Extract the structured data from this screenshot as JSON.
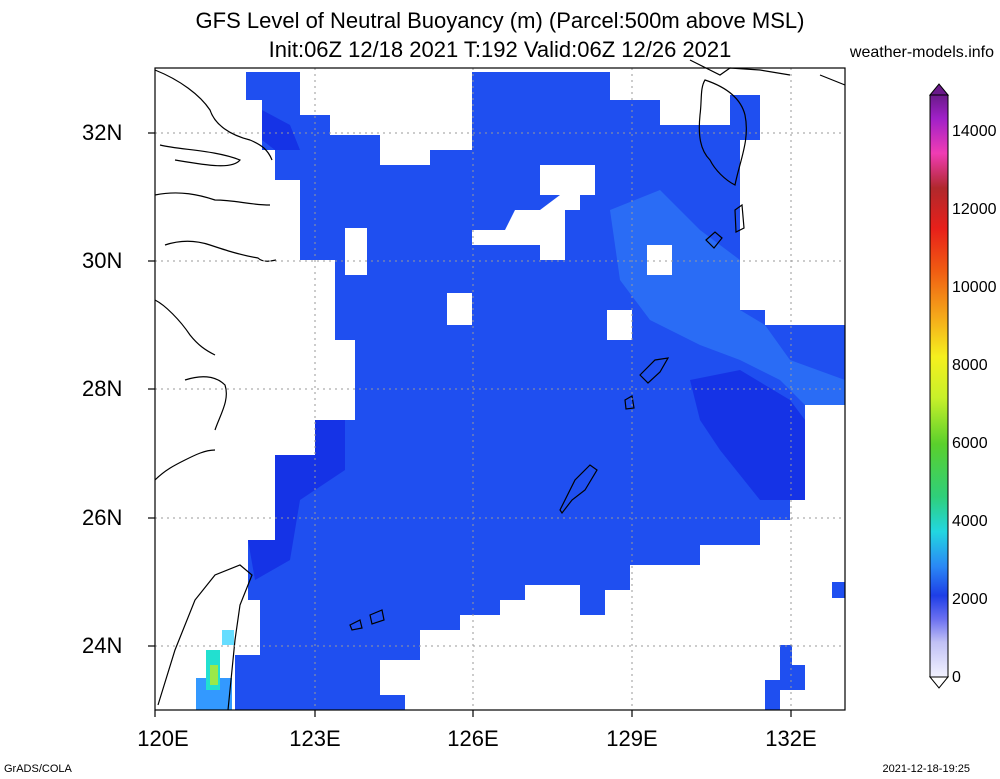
{
  "title": {
    "line1": "GFS Level of Neutral Buoyancy (m) (Parcel:500m above MSL)",
    "line2": "Init:06Z 12/18 2021 T:192 Valid:06Z 12/26 2021"
  },
  "site": "weather-models.info",
  "x_ticks": [
    "120E",
    "123E",
    "126E",
    "129E",
    "132E"
  ],
  "y_ticks": [
    "32N",
    "30N",
    "28N",
    "26N",
    "24N"
  ],
  "colorbar_labels": [
    "14000",
    "12000",
    "10000",
    "8000",
    "6000",
    "4000",
    "2000",
    "0"
  ],
  "credit": "GrADS/COLA",
  "timestamp": "2021-12-18-19:25",
  "colors": {
    "field_main": "#1f4ff0",
    "field_deep": "#1533e6",
    "field_light": "#2a6cf5",
    "gridline": "#9a9a9a"
  }
}
